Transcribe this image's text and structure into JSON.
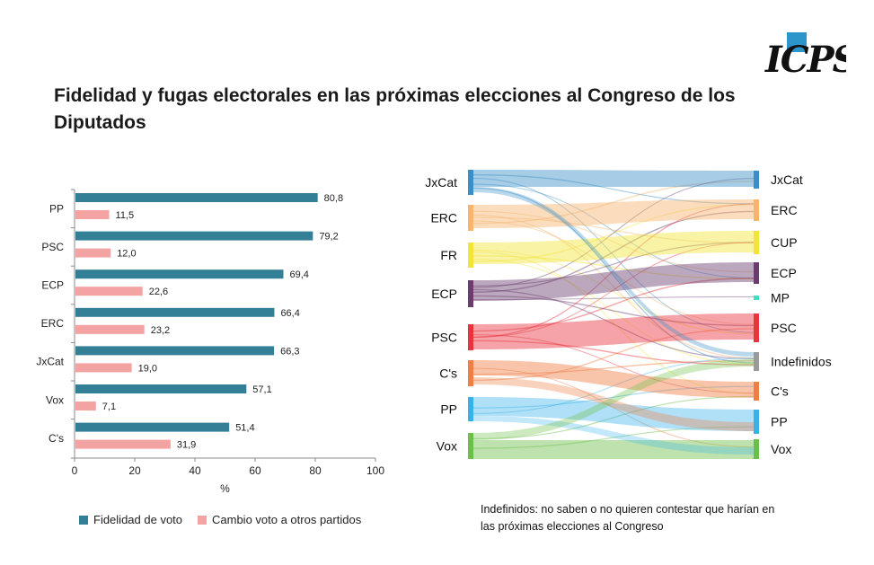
{
  "title": "Fidelidad y fugas electorales en las próximas elecciones al Congreso de los Diputados",
  "logo": {
    "text": "ICPS",
    "accent_color": "#2c95c9"
  },
  "note": "Indefinidos: no saben o no quieren contestar que harían en las próximas elecciones al Congreso",
  "chart_data": [
    {
      "type": "bar",
      "orientation": "horizontal",
      "categories": [
        "PP",
        "PSC",
        "ECP",
        "ERC",
        "JxCat",
        "Vox",
        "C's"
      ],
      "series": [
        {
          "name": "Fidelidad de voto",
          "color": "#337f96",
          "values": [
            80.8,
            79.2,
            69.4,
            66.4,
            66.3,
            57.1,
            51.4
          ],
          "labels": [
            "80,8",
            "79,2",
            "69,4",
            "66,4",
            "66,3",
            "57,1",
            "51,4"
          ]
        },
        {
          "name": "Cambio voto a otros partidos",
          "color": "#f4a3a3",
          "values": [
            11.5,
            12.0,
            22.6,
            23.2,
            19.0,
            7.1,
            31.9
          ],
          "labels": [
            "11,5",
            "12,0",
            "22,6",
            "23,2",
            "19,0",
            "7,1",
            "31,9"
          ]
        }
      ],
      "xlabel": "%",
      "xlim": [
        0,
        100
      ],
      "xticks": [
        0,
        20,
        40,
        60,
        80,
        100
      ],
      "legend_position": "bottom"
    },
    {
      "type": "sankey",
      "left_nodes": [
        {
          "name": "JxCat",
          "color": "#3a8fc8"
        },
        {
          "name": "ERC",
          "color": "#f7b46c"
        },
        {
          "name": "FR",
          "color": "#f2e43a"
        },
        {
          "name": "ECP",
          "color": "#6a3d6e"
        },
        {
          "name": "PSC",
          "color": "#e8343e"
        },
        {
          "name": "C's",
          "color": "#ef7f45"
        },
        {
          "name": "PP",
          "color": "#39b2ea"
        },
        {
          "name": "Vox",
          "color": "#6cbf4a"
        }
      ],
      "right_nodes": [
        {
          "name": "JxCat",
          "color": "#3a8fc8"
        },
        {
          "name": "ERC",
          "color": "#f7b46c"
        },
        {
          "name": "CUP",
          "color": "#f2e43a"
        },
        {
          "name": "ECP",
          "color": "#6a3d6e"
        },
        {
          "name": "MP",
          "color": "#3fe0c0"
        },
        {
          "name": "PSC",
          "color": "#e8343e"
        },
        {
          "name": "Indefinidos",
          "color": "#9a9a9a"
        },
        {
          "name": "C's",
          "color": "#ef7f45"
        },
        {
          "name": "PP",
          "color": "#39b2ea"
        },
        {
          "name": "Vox",
          "color": "#6cbf4a"
        }
      ],
      "main_flows": [
        {
          "from": "JxCat",
          "to": "JxCat"
        },
        {
          "from": "ERC",
          "to": "ERC"
        },
        {
          "from": "FR",
          "to": "CUP"
        },
        {
          "from": "ECP",
          "to": "ECP"
        },
        {
          "from": "PSC",
          "to": "PSC"
        },
        {
          "from": "C's",
          "to": "C's"
        },
        {
          "from": "PP",
          "to": "PP"
        },
        {
          "from": "Vox",
          "to": "Vox"
        },
        {
          "from": "JxCat",
          "to": "Indefinidos"
        },
        {
          "from": "C's",
          "to": "PP"
        },
        {
          "from": "PP",
          "to": "Vox"
        },
        {
          "from": "Vox",
          "to": "Indefinidos"
        }
      ]
    }
  ]
}
